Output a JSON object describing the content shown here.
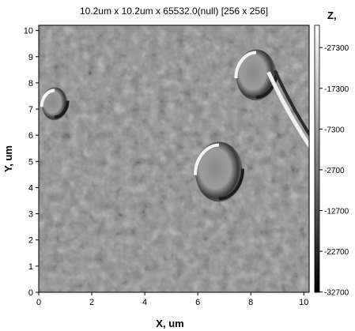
{
  "chart_data": {
    "type": "heatmap",
    "title": "10.2um x 10.2um x 65532.0(null) [256 x 256]",
    "xlabel": "X, um",
    "ylabel": "Y, um",
    "xlim": [
      0,
      10.2
    ],
    "ylim": [
      0,
      10.2
    ],
    "xticks": [
      "0",
      "2",
      "4",
      "6",
      "8",
      "10"
    ],
    "xtick_values": [
      0,
      2,
      4,
      6,
      8,
      10
    ],
    "yticks": [
      "0",
      "1",
      "2",
      "3",
      "4",
      "5",
      "6",
      "7",
      "8",
      "9",
      "10"
    ],
    "ytick_values": [
      0,
      1,
      2,
      3,
      4,
      5,
      6,
      7,
      8,
      9,
      10
    ],
    "colorbar": {
      "label": "Z,",
      "ticks": [
        "27300",
        "17300",
        "7300",
        "-2700",
        "-12700",
        "-22700",
        "-32700"
      ],
      "tick_values": [
        27300,
        17300,
        7300,
        -2700,
        -12700,
        -22700,
        -32700
      ],
      "range": [
        -32766,
        32766
      ],
      "colormap": "grayscale",
      "low_color": "#000000",
      "high_color": "#ffffff"
    },
    "features": [
      {
        "kind": "crater",
        "x": 6.8,
        "y": 4.6
      },
      {
        "kind": "crater",
        "x": 8.2,
        "y": 8.3
      },
      {
        "kind": "crater",
        "x": 0.6,
        "y": 7.2
      },
      {
        "kind": "ridge",
        "x": 9.5,
        "y": 6.6
      }
    ]
  }
}
